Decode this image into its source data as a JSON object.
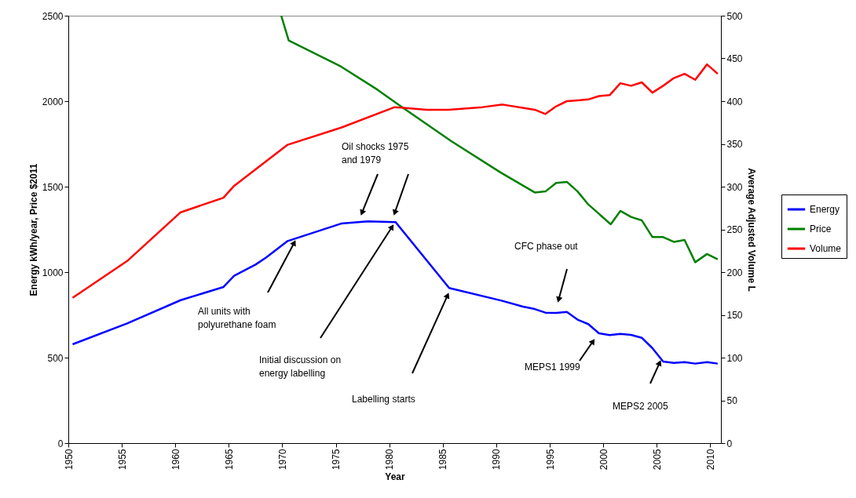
{
  "chart_data": {
    "type": "line",
    "xlabel": "Year",
    "ylabel": "Energy kWh/year, Price $2011",
    "y2label": "Average Adjusted Volume L",
    "xlim": [
      1950,
      2011
    ],
    "xticks": [
      1950,
      1955,
      1960,
      1965,
      1970,
      1975,
      1980,
      1985,
      1990,
      1995,
      2000,
      2005,
      2010
    ],
    "ylim": [
      0,
      2500
    ],
    "yticks": [
      0,
      500,
      1000,
      1500,
      2000,
      2500
    ],
    "y2lim": [
      0,
      500
    ],
    "y2ticks": [
      0,
      50,
      100,
      150,
      200,
      250,
      300,
      350,
      400,
      450,
      500
    ],
    "grid": false,
    "legend": "right",
    "series": [
      {
        "name": "Energy",
        "color": "#0000ff",
        "x": [
          1950.4,
          1955.5,
          1960.5,
          1964.5,
          1965.5,
          1967.5,
          1968.5,
          1970.5,
          1975.5,
          1978,
          1980.6,
          1985.6,
          1990.5,
          1992.5,
          1993.6,
          1994.6,
          1995.6,
          1996.6,
          1997.6,
          1998.6,
          1999.6,
          2000.6,
          2001.6,
          2002.6,
          2003.6,
          2004.6,
          2005.6,
          2006.6,
          2007.6,
          2008.6,
          2009.7,
          2010.7
        ],
        "values": [
          578,
          700,
          836,
          913,
          979,
          1044,
          1086,
          1182,
          1284,
          1297,
          1292,
          907,
          833,
          798,
          784,
          763,
          761,
          767,
          722,
          696,
          642,
          632,
          639,
          633,
          616,
          555,
          477,
          469,
          474,
          465,
          474,
          465
        ]
      },
      {
        "name": "Price",
        "color": "#008000",
        "x": [
          1969.9,
          1970.6,
          1975.5,
          1978.9,
          1981.1,
          1985.8,
          1990.4,
          1993.6,
          1994.6,
          1995.6,
          1996.6,
          1997.6,
          1998.6,
          1999.6,
          2000.7,
          2001.6,
          2002.6,
          2003.6,
          2004.6,
          2005.6,
          2006.6,
          2007.6,
          2008.6,
          2009.7,
          2010.7
        ],
        "values": [
          2500,
          2355,
          2202,
          2067,
          1969,
          1766,
          1583,
          1466,
          1472,
          1522,
          1528,
          1472,
          1396,
          1341,
          1280,
          1358,
          1323,
          1303,
          1205,
          1205,
          1177,
          1188,
          1058,
          1106,
          1075
        ]
      },
      {
        "name": "Volume",
        "color": "#ff0000",
        "axis": "y2",
        "x": [
          1950.4,
          1955.5,
          1960.5,
          1964.5,
          1965.5,
          1970.5,
          1975.5,
          1980.5,
          1983.5,
          1985.5,
          1988.7,
          1990.6,
          1992.6,
          1993.6,
          1994.6,
          1995.6,
          1996.6,
          1997.6,
          1998.6,
          1999.6,
          2000.6,
          2001.6,
          2002.6,
          2003.6,
          2004.6,
          2005.6,
          2006.6,
          2007.6,
          2008.6,
          2009.7,
          2010.7
        ],
        "values": [
          170,
          213,
          270,
          287,
          301,
          349,
          369,
          393,
          390,
          390,
          393,
          396,
          392,
          390,
          385,
          394,
          400,
          401,
          402,
          406,
          407,
          421,
          418,
          422,
          410,
          418,
          427,
          432,
          425,
          443,
          432
        ]
      }
    ],
    "annotations": [
      "Oil shocks 1975\nand 1979",
      "All units with\npolyurethane foam",
      "Initial discussion on\nenergy labelling",
      "Labelling starts",
      "CFC phase out",
      "MEPS1 1999",
      "MEPS2 2005"
    ]
  }
}
